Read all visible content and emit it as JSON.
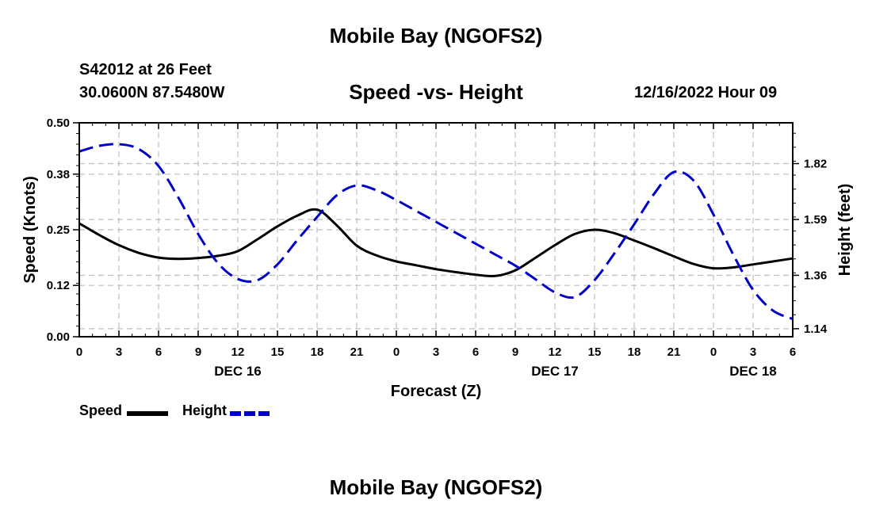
{
  "header": {
    "title": "Mobile Bay (NGOFS2)",
    "station": "S42012 at 26 Feet",
    "coordinates": "30.0600N  87.5480W",
    "subtitle": "Speed -vs- Height",
    "datetime": "12/16/2022 Hour 09"
  },
  "footer": {
    "title": "Mobile Bay (NGOFS2)"
  },
  "chart_data": {
    "type": "line",
    "title": "Speed -vs- Height",
    "xlabel": "Forecast (Z)",
    "ylabel": "Speed (Knots)",
    "y2label": "Height (feet)",
    "x_range": [
      0,
      54
    ],
    "x_ticks": [
      0,
      3,
      6,
      9,
      12,
      15,
      18,
      21,
      24,
      27,
      30,
      33,
      36,
      39,
      42,
      45,
      48,
      51,
      54
    ],
    "x_tick_labels": [
      "0",
      "3",
      "6",
      "9",
      "12",
      "15",
      "18",
      "21",
      "0",
      "3",
      "6",
      "9",
      "12",
      "15",
      "18",
      "21",
      "0",
      "3",
      "6"
    ],
    "day_labels": [
      {
        "hour": 12,
        "label": "DEC 16"
      },
      {
        "hour": 36,
        "label": "DEC 17"
      },
      {
        "hour": 51,
        "label": "DEC 18"
      }
    ],
    "ylim": [
      0,
      0.5
    ],
    "y_ticks": [
      0,
      0.12,
      0.25,
      0.38,
      0.5
    ],
    "y_tick_labels": [
      "0.00",
      "0.12",
      "0.25",
      "0.38",
      "0.50"
    ],
    "y2lim": [
      1.107,
      1.988
    ],
    "y2_ticks": [
      1.14,
      1.36,
      1.59,
      1.82
    ],
    "y2_tick_labels": [
      "1.14",
      "1.36",
      "1.59",
      "1.82"
    ],
    "grid": true,
    "legend_placement": "bottom-left",
    "series": [
      {
        "name": "Speed",
        "axis": "left",
        "color": "#000000",
        "style": "solid",
        "x": [
          0,
          1.5,
          3,
          4.5,
          6,
          7.5,
          9,
          10.5,
          12,
          13.5,
          15,
          16.5,
          18,
          19.5,
          21,
          22.5,
          24,
          25.5,
          27,
          28.5,
          30,
          31.5,
          33,
          34.5,
          36,
          37.5,
          39,
          40.5,
          42,
          43.5,
          45,
          46.5,
          48,
          49.5,
          51,
          52.5,
          54
        ],
        "values": [
          0.265,
          0.238,
          0.214,
          0.196,
          0.185,
          0.182,
          0.184,
          0.189,
          0.2,
          0.228,
          0.258,
          0.283,
          0.297,
          0.26,
          0.213,
          0.19,
          0.176,
          0.167,
          0.158,
          0.151,
          0.145,
          0.142,
          0.155,
          0.184,
          0.214,
          0.24,
          0.25,
          0.242,
          0.225,
          0.207,
          0.188,
          0.17,
          0.16,
          0.162,
          0.169,
          0.176,
          0.183
        ]
      },
      {
        "name": "Height",
        "axis": "right",
        "color": "#0000c8",
        "style": "dashed",
        "x": [
          0,
          1.5,
          3,
          4.5,
          6,
          7.5,
          9,
          10.5,
          12,
          13.5,
          15,
          16.5,
          18,
          19.5,
          21,
          22.5,
          24,
          25.5,
          27,
          28.5,
          30,
          31.5,
          33,
          34.5,
          36,
          37.5,
          39,
          40.5,
          42,
          43.5,
          45,
          46.5,
          48,
          49.5,
          51,
          52.5,
          54
        ],
        "values": [
          1.87,
          1.893,
          1.9,
          1.88,
          1.81,
          1.68,
          1.53,
          1.41,
          1.345,
          1.34,
          1.405,
          1.505,
          1.6,
          1.69,
          1.73,
          1.71,
          1.67,
          1.625,
          1.58,
          1.535,
          1.49,
          1.445,
          1.4,
          1.345,
          1.29,
          1.27,
          1.34,
          1.45,
          1.57,
          1.695,
          1.785,
          1.75,
          1.61,
          1.445,
          1.3,
          1.215,
          1.18
        ]
      }
    ]
  }
}
